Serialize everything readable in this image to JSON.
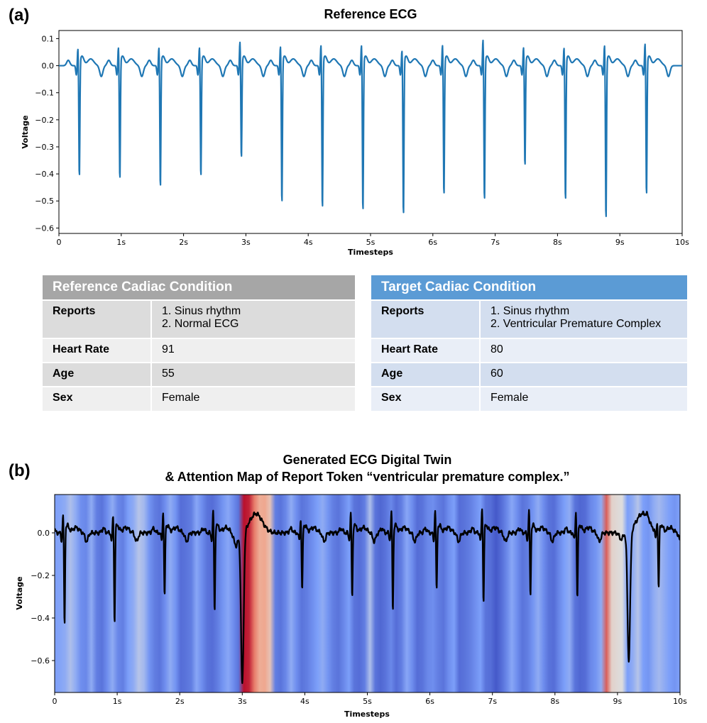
{
  "panel_a_label": "(a)",
  "panel_b_label": "(b)",
  "chart_data": [
    {
      "type": "line",
      "title": "Reference ECG",
      "xlabel": "Timesteps",
      "ylabel": "Voltage",
      "xlim": [
        0,
        10
      ],
      "ylim": [
        -0.62,
        0.13
      ],
      "x_ticks": [
        "0",
        "1s",
        "2s",
        "3s",
        "4s",
        "5s",
        "6s",
        "7s",
        "8s",
        "9s",
        "10s"
      ],
      "y_ticks": [
        "0.1",
        "0.0",
        "−0.1",
        "−0.2",
        "−0.3",
        "−0.4",
        "−0.5",
        "−0.6"
      ],
      "y_tick_values": [
        0.1,
        0.0,
        -0.1,
        -0.2,
        -0.3,
        -0.4,
        -0.5,
        -0.6
      ],
      "line_color": "#1f77b4",
      "beats": [
        {
          "t": 0.32,
          "r": 0.065,
          "s": -0.43
        },
        {
          "t": 0.97,
          "r": 0.07,
          "s": -0.44
        },
        {
          "t": 1.62,
          "r": 0.07,
          "s": -0.47
        },
        {
          "t": 2.27,
          "r": 0.07,
          "s": -0.43
        },
        {
          "t": 2.92,
          "r": 0.09,
          "s": -0.36
        },
        {
          "t": 3.57,
          "r": 0.075,
          "s": -0.53
        },
        {
          "t": 4.22,
          "r": 0.08,
          "s": -0.55
        },
        {
          "t": 4.87,
          "r": 0.08,
          "s": -0.56
        },
        {
          "t": 5.52,
          "r": 0.06,
          "s": -0.575
        },
        {
          "t": 6.17,
          "r": 0.08,
          "s": -0.5
        },
        {
          "t": 6.82,
          "r": 0.1,
          "s": -0.52
        },
        {
          "t": 7.47,
          "r": 0.07,
          "s": -0.39
        },
        {
          "t": 8.12,
          "r": 0.07,
          "s": -0.52
        },
        {
          "t": 8.77,
          "r": 0.08,
          "s": -0.59
        },
        {
          "t": 9.42,
          "r": 0.085,
          "s": -0.5
        }
      ]
    },
    {
      "type": "heatmap",
      "title_line1": "Generated ECG Digital Twin",
      "title_line2": "& Attention Map of Report Token “ventricular premature complex.”",
      "xlabel": "Timesteps",
      "ylabel": "Voltage",
      "xlim": [
        0,
        10
      ],
      "ylim": [
        -0.75,
        0.18
      ],
      "x_ticks": [
        "0",
        "1s",
        "2s",
        "3s",
        "4s",
        "5s",
        "6s",
        "7s",
        "8s",
        "9s",
        "10s"
      ],
      "y_ticks": [
        "0.0",
        "−0.2",
        "−0.4",
        "−0.6"
      ],
      "y_tick_values": [
        0.0,
        -0.2,
        -0.4,
        -0.6
      ],
      "line_color": "#000000",
      "attention_colormap": "coolwarm",
      "attention": [
        0.25,
        0.27,
        0.3,
        0.38,
        0.3,
        0.2,
        0.18,
        0.3,
        0.15,
        0.12,
        0.2,
        0.3,
        0.18,
        0.15,
        0.25,
        0.3,
        0.4,
        0.35,
        0.22,
        0.15,
        0.12,
        0.2,
        0.3,
        0.22,
        0.1,
        0.12,
        0.15,
        0.28,
        0.2,
        0.12,
        0.1,
        0.15,
        0.22,
        0.28,
        0.2,
        0.12,
        0.98,
        0.95,
        0.8,
        0.68,
        0.7,
        0.6,
        0.15,
        0.12,
        0.18,
        0.3,
        0.2,
        0.12,
        0.15,
        0.2,
        0.25,
        0.3,
        0.22,
        0.15,
        0.12,
        0.18,
        0.25,
        0.12,
        0.1,
        0.15,
        0.38,
        0.12,
        0.08,
        0.12,
        0.18,
        0.1,
        0.15,
        0.28,
        0.2,
        0.1,
        0.12,
        0.18,
        0.2,
        0.15,
        0.12,
        0.2,
        0.25,
        0.1,
        0.12,
        0.15,
        0.2,
        0.25,
        0.12,
        0.1,
        0.04,
        0.1,
        0.18,
        0.28,
        0.2,
        0.12,
        0.15,
        0.22,
        0.3,
        0.2,
        0.12,
        0.1,
        0.18,
        0.25,
        0.3,
        0.12,
        0.08,
        0.1,
        0.18,
        0.22,
        0.3,
        0.85,
        0.55,
        0.52,
        0.5,
        0.25,
        0.3,
        0.4,
        0.25,
        0.22,
        0.3,
        0.35,
        0.3,
        0.25,
        0.22,
        0.26
      ],
      "beats": [
        {
          "t": 0.15,
          "r": 0.09,
          "s": -0.45
        },
        {
          "t": 0.95,
          "r": 0.08,
          "s": -0.44
        },
        {
          "t": 1.75,
          "r": 0.1,
          "s": -0.32
        },
        {
          "t": 2.55,
          "r": 0.1,
          "s": -0.39
        },
        {
          "t": 3.0,
          "r": 0.04,
          "s": -0.72,
          "pvc": true
        },
        {
          "t": 3.95,
          "r": 0.06,
          "s": -0.29
        },
        {
          "t": 4.75,
          "r": 0.09,
          "s": -0.32
        },
        {
          "t": 5.4,
          "r": 0.1,
          "s": -0.38
        },
        {
          "t": 6.1,
          "r": 0.11,
          "s": -0.29
        },
        {
          "t": 6.85,
          "r": 0.12,
          "s": -0.34
        },
        {
          "t": 7.6,
          "r": 0.11,
          "s": -0.31
        },
        {
          "t": 8.35,
          "r": 0.1,
          "s": -0.32
        },
        {
          "t": 9.18,
          "r": 0.04,
          "s": -0.61,
          "pvc": true
        },
        {
          "t": 9.65,
          "r": 0.05,
          "s": -0.28
        }
      ]
    }
  ],
  "reference_table": {
    "header": "Reference Cadiac Condition",
    "header_color": "#a6a6a6",
    "rows": [
      {
        "key": "Reports",
        "lines": [
          "1. Sinus rhythm",
          "2. Normal ECG"
        ]
      },
      {
        "key": "Heart Rate",
        "lines": [
          "91"
        ]
      },
      {
        "key": "Age",
        "lines": [
          "55"
        ]
      },
      {
        "key": "Sex",
        "lines": [
          "Female"
        ]
      }
    ]
  },
  "target_table": {
    "header": "Target Cadiac Condition",
    "header_color": "#5b9bd5",
    "rows": [
      {
        "key": "Reports",
        "lines": [
          "1. Sinus rhythm",
          "2. Ventricular Premature Complex"
        ]
      },
      {
        "key": "Heart Rate",
        "lines": [
          "80"
        ]
      },
      {
        "key": "Age",
        "lines": [
          "60"
        ]
      },
      {
        "key": "Sex",
        "lines": [
          "Female"
        ]
      }
    ]
  }
}
